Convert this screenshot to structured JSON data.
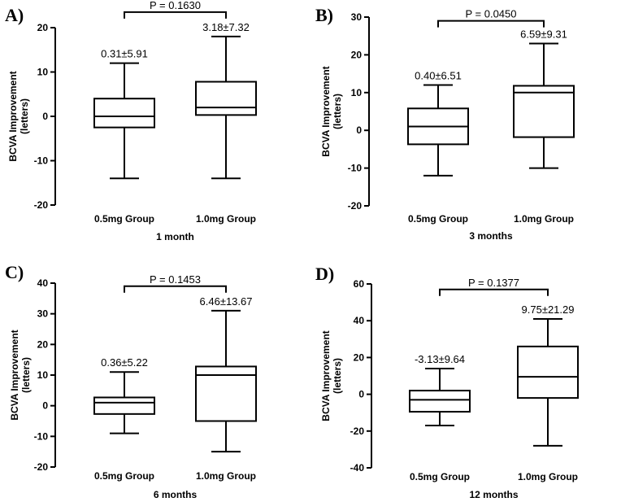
{
  "chart_data": [
    {
      "type": "box",
      "panel": "A)",
      "xlabel": "1 month",
      "ylabel_line1": "BCVA Improvement",
      "ylabel_line2": "(letters)",
      "ylim": [
        -20,
        20
      ],
      "yticks": [
        -20,
        -10,
        0,
        10,
        20
      ],
      "categories": [
        "0.5mg Group",
        "1.0mg Group"
      ],
      "boxes": [
        {
          "min": -14,
          "q1": -2.5,
          "median": 0,
          "q3": 4,
          "max": 12,
          "label": "0.31±5.91"
        },
        {
          "min": -14,
          "q1": 0.3,
          "median": 2,
          "q3": 7.8,
          "max": 18,
          "label": "3.18±7.32"
        }
      ],
      "p_value": "P = 0.1630",
      "bracket_y": 23.5
    },
    {
      "type": "box",
      "panel": "B)",
      "xlabel": "3 months",
      "ylabel_line1": "BCVA Improvement",
      "ylabel_line2": "(letters)",
      "ylim": [
        -20,
        30
      ],
      "yticks": [
        -20,
        -10,
        0,
        10,
        20,
        30
      ],
      "categories": [
        "0.5mg Group",
        "1.0mg Group"
      ],
      "boxes": [
        {
          "min": -12,
          "q1": -3.7,
          "median": 1,
          "q3": 5.8,
          "max": 12,
          "label": "0.40±6.51"
        },
        {
          "min": -10,
          "q1": -1.8,
          "median": 10,
          "q3": 11.8,
          "max": 23,
          "label": "6.59±9.31"
        }
      ],
      "p_value": "P = 0.0450",
      "bracket_y": 29
    },
    {
      "type": "box",
      "panel": "C)",
      "xlabel": "6 months",
      "ylabel_line1": "BCVA Improvement",
      "ylabel_line2": "(letters)",
      "ylim": [
        -20,
        40
      ],
      "yticks": [
        -20,
        -10,
        0,
        10,
        20,
        30,
        40
      ],
      "categories": [
        "0.5mg Group",
        "1.0mg Group"
      ],
      "boxes": [
        {
          "min": -9,
          "q1": -2.7,
          "median": 1,
          "q3": 2.7,
          "max": 11,
          "label": "0.36±5.22"
        },
        {
          "min": -15,
          "q1": -5,
          "median": 10,
          "q3": 12.8,
          "max": 31,
          "label": "6.46±13.67"
        }
      ],
      "p_value": "P = 0.1453",
      "bracket_y": 39
    },
    {
      "type": "box",
      "panel": "D)",
      "xlabel": "12 months",
      "ylabel_line1": "BCVA Improvement",
      "ylabel_line2": "(letters)",
      "ylim": [
        -40,
        60
      ],
      "yticks": [
        -40,
        -20,
        0,
        20,
        40,
        60
      ],
      "categories": [
        "0.5mg Group",
        "1.0mg Group"
      ],
      "boxes": [
        {
          "min": -17,
          "q1": -9.5,
          "median": -3,
          "q3": 2,
          "max": 14,
          "label": "-3.13±9.64"
        },
        {
          "min": -28,
          "q1": -2,
          "median": 9.5,
          "q3": 26,
          "max": 41,
          "label": "9.75±21.29"
        }
      ],
      "p_value": "P = 0.1377",
      "bracket_y": 57
    }
  ]
}
